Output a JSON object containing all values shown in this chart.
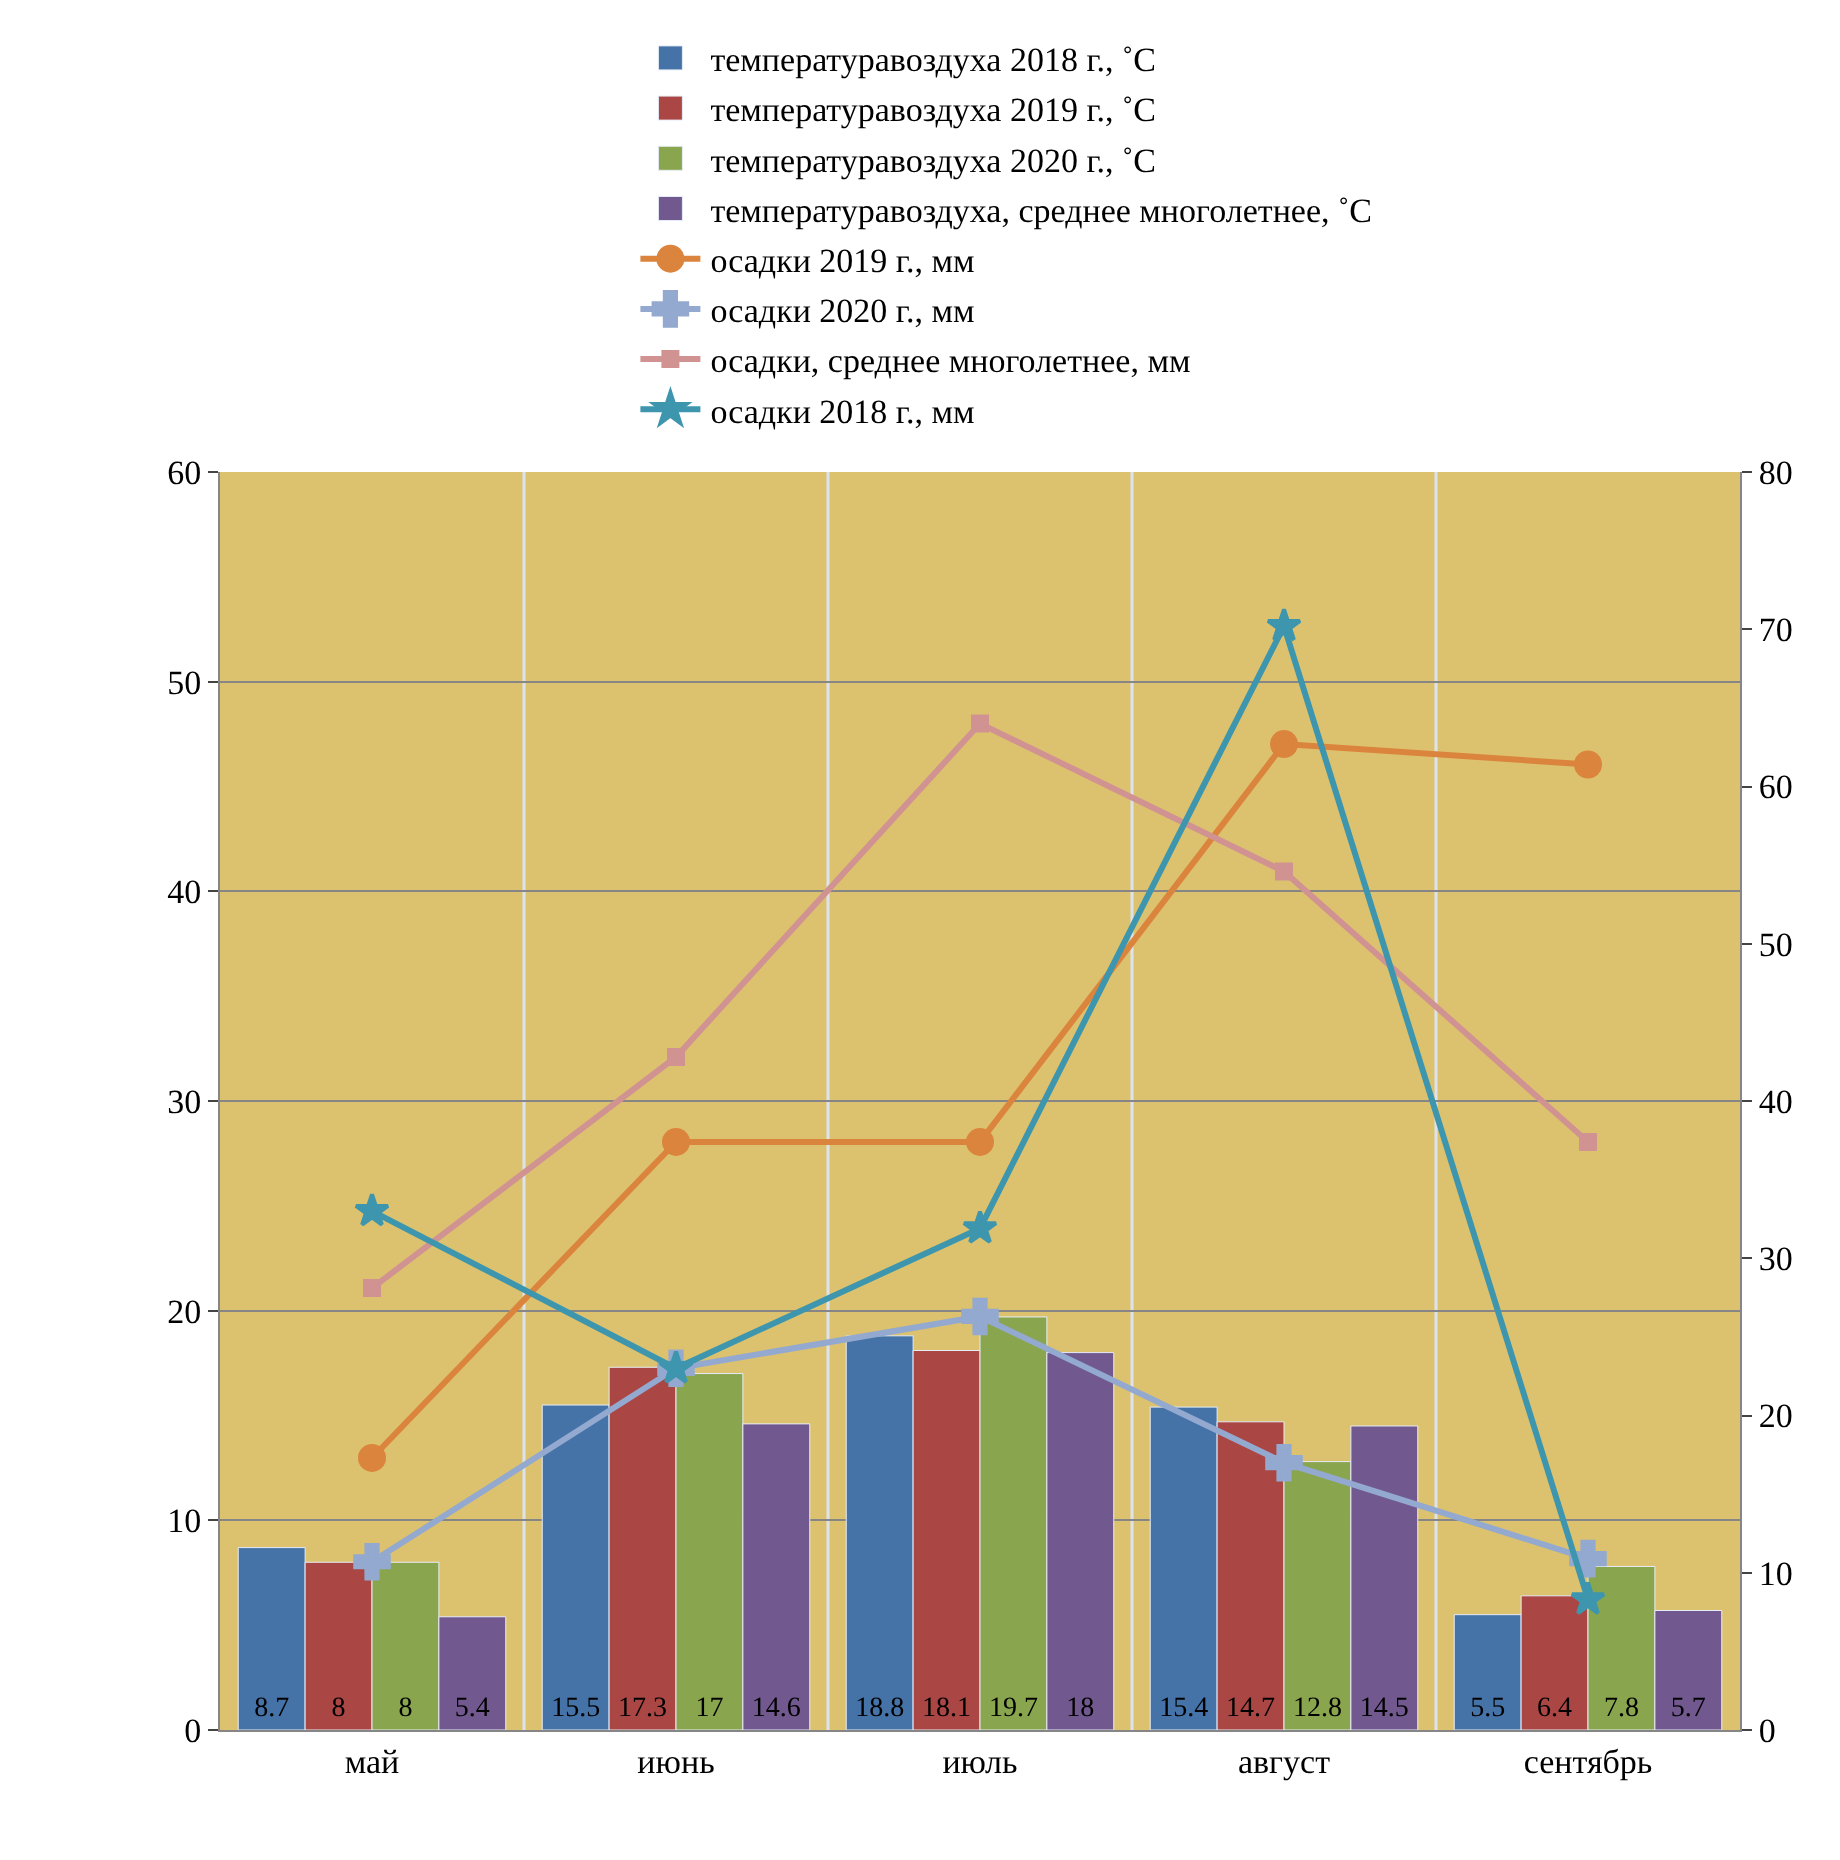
{
  "chart_data": {
    "type": "bar",
    "categories": [
      "май",
      "июнь",
      "июль",
      "август",
      "сентябрь"
    ],
    "series": [
      {
        "name": "температуравоздуха 2018 г., ˚С",
        "color": "#4572a7",
        "values": [
          8.7,
          15.5,
          18.8,
          15.4,
          5.5
        ],
        "value_labels": [
          "8.7",
          "15.5",
          "18.8",
          "15.4",
          "5.5"
        ]
      },
      {
        "name": "температуравоздуха 2019 г., ˚С",
        "color": "#aa4643",
        "values": [
          8,
          17.3,
          18.1,
          14.7,
          6.4
        ],
        "value_labels": [
          "8",
          "17.3",
          "18.1",
          "14.7",
          "6.4"
        ]
      },
      {
        "name": "температуравоздуха 2020 г., ˚С",
        "color": "#89a54e",
        "values": [
          8,
          17,
          19.7,
          12.8,
          7.8
        ],
        "value_labels": [
          "8",
          "17",
          "19.7",
          "12.8",
          "7.8"
        ]
      },
      {
        "name": "температуравоздуха, среднее многолетнее, ˚С",
        "color": "#71588f",
        "values": [
          5.4,
          14.6,
          18,
          14.5,
          5.7
        ],
        "value_labels": [
          "5.4",
          "14.6",
          "18",
          "14.5",
          "5.7"
        ]
      },
      {
        "name": "осадки 2019 г., мм",
        "type": "line",
        "axis": "y2",
        "marker": "circle",
        "color": "#db843d",
        "values": [
          17.3,
          37.4,
          37.4,
          62.7,
          61.4
        ]
      },
      {
        "name": "осадки 2020 г., мм",
        "type": "line",
        "axis": "y2",
        "marker": "cross",
        "color": "#93a9cf",
        "values": [
          10.7,
          23.0,
          26.3,
          17.0,
          10.9
        ]
      },
      {
        "name": "осадки, среднее многолетнее, мм",
        "type": "line",
        "axis": "y2",
        "marker": "square",
        "color": "#d19392",
        "values": [
          28.1,
          42.8,
          64.0,
          54.6,
          37.4
        ]
      },
      {
        "name": "осадки 2018 г., мм",
        "type": "line",
        "axis": "y2",
        "marker": "star",
        "color": "#3d96ae",
        "values": [
          33.0,
          23.0,
          31.9,
          70.2,
          8.3
        ]
      }
    ],
    "ylim": [
      0,
      60
    ],
    "yticks": [
      0,
      10,
      20,
      30,
      40,
      50,
      60
    ],
    "y2lim": [
      0,
      80
    ],
    "y2ticks": [
      0,
      10,
      20,
      30,
      40,
      50,
      60,
      70,
      80
    ],
    "grid": true,
    "legend": "top"
  }
}
